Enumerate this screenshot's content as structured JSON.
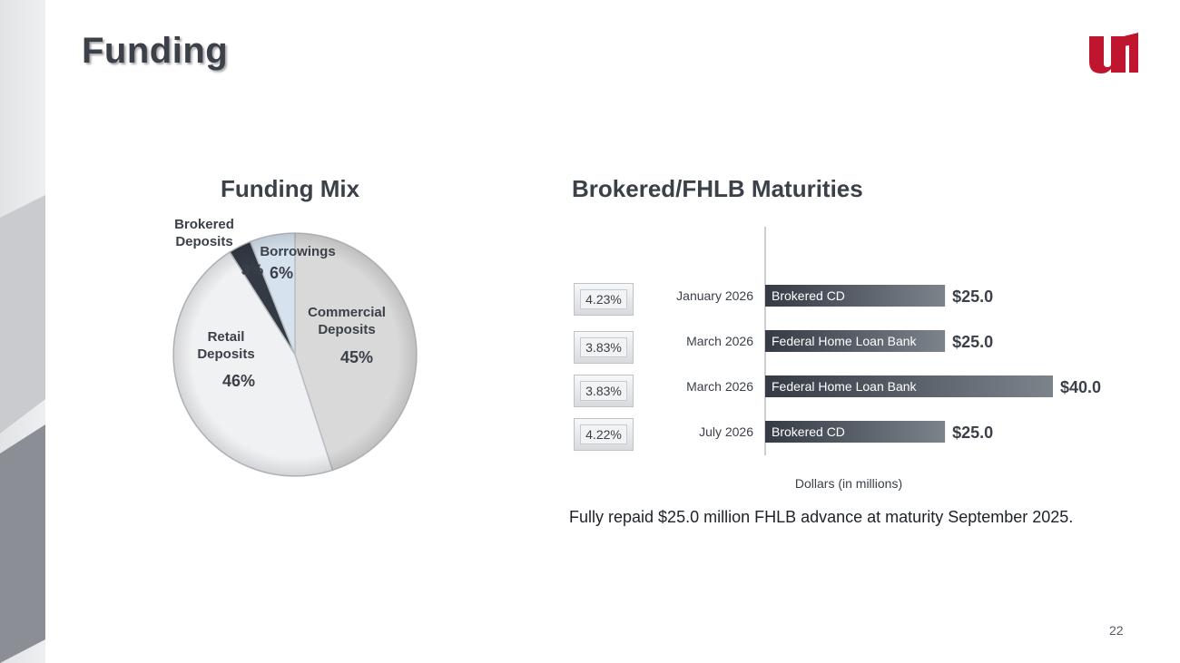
{
  "page": {
    "title": "Funding",
    "footnote": "Fully repaid $25.0 million FHLB advance at maturity September 2025.",
    "page_number": "22",
    "logo_icon": "u1-logo-icon",
    "logo_color": "#c0152f"
  },
  "chart_data": [
    {
      "type": "pie",
      "title": "Funding Mix",
      "slices": [
        {
          "label_lines": [
            "Commercial",
            "Deposits"
          ],
          "pct_label": "45%",
          "value": 45,
          "color": "#d9d9d9"
        },
        {
          "label_lines": [
            "Retail",
            "Deposits"
          ],
          "pct_label": "46%",
          "value": 46,
          "color": "#f0f1f3"
        },
        {
          "label_lines": [
            "Brokered",
            "Deposits"
          ],
          "pct_label": "3%",
          "value": 3,
          "color": "#333a44"
        },
        {
          "label_lines": [
            "Borrowings"
          ],
          "pct_label": "6%",
          "value": 6,
          "color": "#d6e3ee"
        }
      ]
    },
    {
      "type": "bar",
      "orientation": "horizontal",
      "title": "Brokered/FHLB Maturities",
      "xlabel": "Dollars (in millions)",
      "bars": [
        {
          "category": "January 2026",
          "label": "Brokered CD",
          "value": 25.0,
          "value_label": "$25.0",
          "rate": "4.23%"
        },
        {
          "category": "March 2026",
          "label": "Federal Home Loan Bank",
          "value": 25.0,
          "value_label": "$25.0",
          "rate": "3.83%"
        },
        {
          "category": "March 2026",
          "label": "Federal Home Loan Bank",
          "value": 40.0,
          "value_label": "$40.0",
          "rate": "3.83%"
        },
        {
          "category": "July 2026",
          "label": "Brokered CD",
          "value": 25.0,
          "value_label": "$25.0",
          "rate": "4.22%"
        }
      ]
    }
  ]
}
